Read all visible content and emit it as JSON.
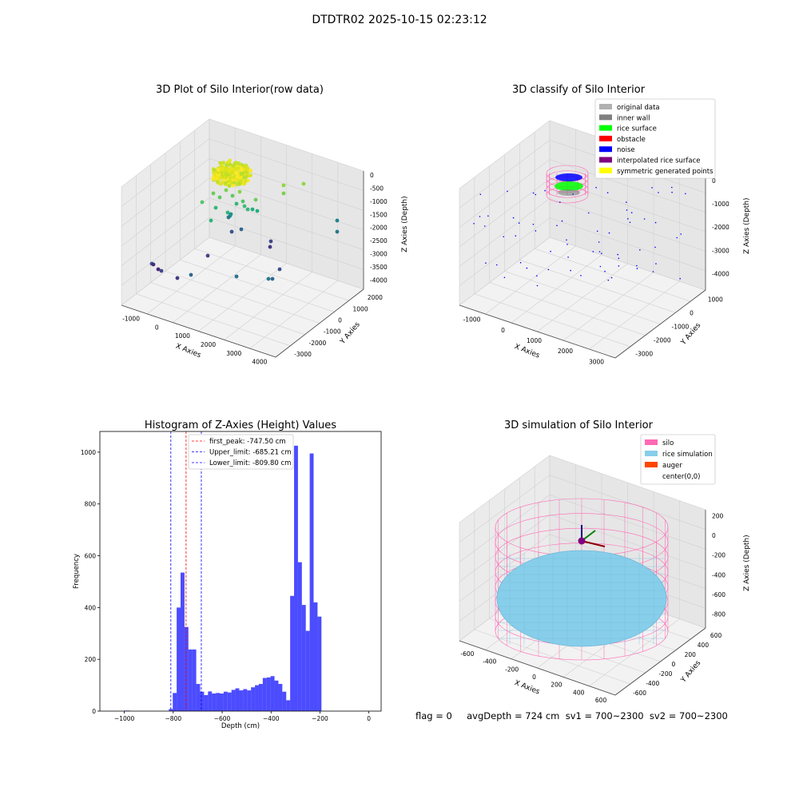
{
  "figure": {
    "suptitle": "DTDTR02 2025-10-15 02:23:12",
    "footer": "flag = 0     avgDepth = 724 cm  sv1 = 700~2300  sv2 = 700~2300"
  },
  "chart_data": [
    {
      "type": "scatter3d",
      "title": "3D Plot of Silo Interior(row data)",
      "xlabel": "X Axies",
      "ylabel": "Y Axies",
      "zlabel": "Z Axies (Depth)",
      "xticks": [
        "-1000",
        "0",
        "1000",
        "2000",
        "3000",
        "4000"
      ],
      "yticks": [
        "2000",
        "1000",
        "0",
        "-1000",
        "-2000",
        "-3000"
      ],
      "zticks": [
        "0",
        "-500",
        "-1000",
        "-1500",
        "-2000",
        "-2500",
        "-3000",
        "-3500",
        "-4000"
      ],
      "grid": true,
      "colormap": "viridis"
    },
    {
      "type": "scatter3d",
      "title": "3D classify of Silo Interior",
      "xlabel": "X Axies",
      "ylabel": "Y Axies",
      "zlabel": "Z Axies (Depth)",
      "xticks": [
        "-1000",
        "0",
        "1000",
        "2000",
        "3000"
      ],
      "yticks": [
        "1000",
        "0",
        "-1000",
        "-2000",
        "-3000"
      ],
      "zticks": [
        "0",
        "-1000",
        "-2000",
        "-3000",
        "-4000"
      ],
      "grid": true,
      "legend": {
        "position": "top-right",
        "entries": [
          {
            "label": "original data",
            "color": "#b0b0b0"
          },
          {
            "label": "inner wall",
            "color": "#808080"
          },
          {
            "label": "rice surface",
            "color": "#00ff00"
          },
          {
            "label": "obstacle",
            "color": "#ff0000"
          },
          {
            "label": "noise",
            "color": "#0000ff"
          },
          {
            "label": "interpolated rice surface",
            "color": "#800080"
          },
          {
            "label": "symmetric generated points",
            "color": "#ffff00"
          }
        ]
      }
    },
    {
      "type": "bar",
      "title": "Histogram of Z-Axies (Height) Values",
      "xlabel": "Depth (cm)",
      "ylabel": "Frequency",
      "xlim": [
        -1100,
        50
      ],
      "ylim": [
        0,
        1080
      ],
      "xticks": [
        -1000,
        -800,
        -600,
        -400,
        -200,
        0
      ],
      "yticks": [
        0,
        200,
        400,
        600,
        800,
        1000
      ],
      "color": "#0000ff",
      "bins": [
        {
          "left": -1001,
          "right": -978,
          "count": 2
        },
        {
          "left": -818,
          "right": -802,
          "count": 8
        },
        {
          "left": -802,
          "right": -786,
          "count": 70
        },
        {
          "left": -786,
          "right": -770,
          "count": 400
        },
        {
          "left": -770,
          "right": -754,
          "count": 535
        },
        {
          "left": -754,
          "right": -738,
          "count": 325
        },
        {
          "left": -738,
          "right": -722,
          "count": 238
        },
        {
          "left": -722,
          "right": -706,
          "count": 238
        },
        {
          "left": -706,
          "right": -690,
          "count": 105
        },
        {
          "left": -690,
          "right": -674,
          "count": 75
        },
        {
          "left": -674,
          "right": -658,
          "count": 62
        },
        {
          "left": -658,
          "right": -642,
          "count": 76
        },
        {
          "left": -642,
          "right": -626,
          "count": 68
        },
        {
          "left": -626,
          "right": -610,
          "count": 70
        },
        {
          "left": -610,
          "right": -594,
          "count": 68
        },
        {
          "left": -594,
          "right": -578,
          "count": 75
        },
        {
          "left": -578,
          "right": -562,
          "count": 72
        },
        {
          "left": -562,
          "right": -546,
          "count": 82
        },
        {
          "left": -546,
          "right": -530,
          "count": 88
        },
        {
          "left": -530,
          "right": -514,
          "count": 80
        },
        {
          "left": -514,
          "right": -498,
          "count": 85
        },
        {
          "left": -498,
          "right": -482,
          "count": 80
        },
        {
          "left": -482,
          "right": -466,
          "count": 92
        },
        {
          "left": -466,
          "right": -450,
          "count": 100
        },
        {
          "left": -450,
          "right": -434,
          "count": 105
        },
        {
          "left": -434,
          "right": -418,
          "count": 128
        },
        {
          "left": -418,
          "right": -402,
          "count": 130
        },
        {
          "left": -402,
          "right": -386,
          "count": 135
        },
        {
          "left": -386,
          "right": -370,
          "count": 118
        },
        {
          "left": -370,
          "right": -354,
          "count": 105
        },
        {
          "left": -354,
          "right": -338,
          "count": 75
        },
        {
          "left": -338,
          "right": -322,
          "count": 42
        },
        {
          "left": -322,
          "right": -306,
          "count": 445
        },
        {
          "left": -306,
          "right": -290,
          "count": 1025
        },
        {
          "left": -290,
          "right": -274,
          "count": 575
        },
        {
          "left": -274,
          "right": -258,
          "count": 410
        },
        {
          "left": -258,
          "right": -242,
          "count": 310
        },
        {
          "left": -242,
          "right": -226,
          "count": 995
        },
        {
          "left": -226,
          "right": -210,
          "count": 420
        },
        {
          "left": -210,
          "right": -194,
          "count": 365
        }
      ],
      "vlines": [
        {
          "label": "first_peak: -747.50 cm",
          "x": -747.5,
          "color": "#ff0000"
        },
        {
          "label": "Upper_limit: -685.21 cm",
          "x": -685.21,
          "color": "#0000ff"
        },
        {
          "label": "Lower_limit: -809.80 cm",
          "x": -809.8,
          "color": "#0000ff"
        }
      ],
      "legend": {
        "position": "top-right"
      }
    },
    {
      "type": "surface3d",
      "title": "3D simulation of Silo Interior",
      "xlabel": "X Axies",
      "ylabel": "Y Axies",
      "zlabel": "Z Axies (Depth)",
      "xticks": [
        "-600",
        "-400",
        "-200",
        "0",
        "200",
        "400",
        "600"
      ],
      "yticks": [
        "600",
        "400",
        "200",
        "0",
        "-200",
        "-400",
        "-600"
      ],
      "zticks": [
        "200",
        "0",
        "-200",
        "-400",
        "-600",
        "-800"
      ],
      "grid": true,
      "legend": {
        "position": "top-right",
        "entries": [
          {
            "label": "silo",
            "color": "#ff69b4"
          },
          {
            "label": "rice simulation",
            "color": "#87ceeb"
          },
          {
            "label": "auger",
            "color": "#ff4500"
          },
          {
            "label": "center(0,0)",
            "color": "#ffffff"
          }
        ]
      }
    }
  ]
}
